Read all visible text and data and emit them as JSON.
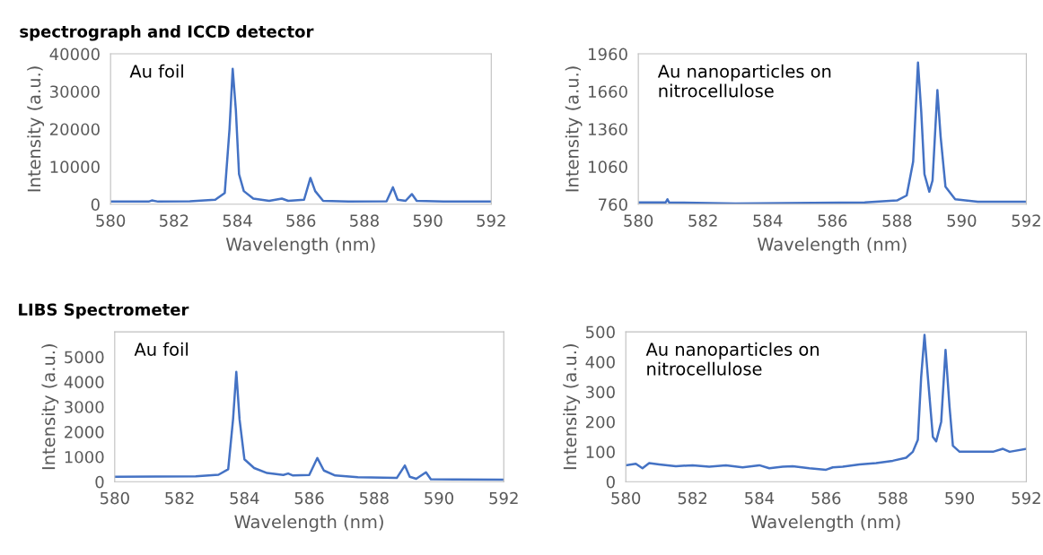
{
  "chart_data": [
    {
      "type": "line",
      "title": "spectrograph and ICCD detector",
      "xlabel": "Wavelength (nm)",
      "ylabel": "Intensity (a.u.)",
      "annotations": [
        "Au foil"
      ],
      "xlim": [
        580,
        592
      ],
      "xticks": [
        580,
        582,
        584,
        586,
        588,
        590,
        592
      ],
      "ylim": [
        0,
        40000
      ],
      "yticks": [
        0,
        10000,
        20000,
        30000,
        40000
      ],
      "grid": false,
      "legend": false,
      "series": [
        {
          "color": "#4472c4",
          "x": [
            580,
            581.2,
            581.3,
            581.5,
            582.5,
            583.3,
            583.6,
            583.75,
            583.85,
            583.95,
            584.05,
            584.2,
            584.5,
            585,
            585.4,
            585.6,
            586.1,
            586.3,
            586.45,
            586.7,
            587.5,
            588.7,
            588.9,
            589.05,
            589.3,
            589.5,
            589.65,
            590.5,
            592
          ],
          "values": [
            700,
            700,
            1000,
            700,
            800,
            1200,
            3000,
            20000,
            36000,
            25000,
            8000,
            3500,
            1500,
            900,
            1500,
            900,
            1200,
            7000,
            3500,
            900,
            700,
            800,
            4500,
            1200,
            900,
            2700,
            900,
            700,
            700
          ]
        }
      ]
    },
    {
      "type": "line",
      "xlabel": "Wavelength (nm)",
      "ylabel": "Intensity (a.u.)",
      "annotations": [
        "Au nanoparticles on\nnitrocellulose"
      ],
      "xlim": [
        580,
        592
      ],
      "xticks": [
        580,
        582,
        584,
        586,
        588,
        590,
        592
      ],
      "ylim": [
        760,
        1960
      ],
      "yticks": [
        760,
        1060,
        1360,
        1660,
        1960
      ],
      "grid": false,
      "legend": false,
      "series": [
        {
          "color": "#4472c4",
          "x": [
            580,
            580.85,
            580.9,
            580.95,
            583,
            587,
            588,
            588.3,
            588.5,
            588.65,
            588.75,
            588.85,
            589.0,
            589.1,
            589.25,
            589.35,
            589.5,
            589.8,
            590.5,
            592
          ],
          "values": [
            775,
            775,
            800,
            775,
            765,
            775,
            790,
            830,
            1100,
            1890,
            1500,
            1000,
            860,
            950,
            1670,
            1300,
            900,
            800,
            780,
            780
          ]
        }
      ]
    },
    {
      "type": "line",
      "title": "LIBS Spectrometer",
      "xlabel": "Wavelength (nm)",
      "ylabel": "Intensity (a.u.)",
      "annotations": [
        "Au foil"
      ],
      "xlim": [
        580,
        592
      ],
      "xticks": [
        580,
        582,
        584,
        586,
        588,
        590,
        592
      ],
      "ylim": [
        0,
        6000
      ],
      "yticks": [
        0,
        1000,
        2000,
        3000,
        4000,
        5000
      ],
      "grid": false,
      "legend": false,
      "series": [
        {
          "color": "#4472c4",
          "x": [
            580,
            582.5,
            583.2,
            583.5,
            583.65,
            583.75,
            583.85,
            584,
            584.3,
            584.7,
            585.2,
            585.35,
            585.5,
            586,
            586.25,
            586.45,
            586.8,
            587.5,
            588.7,
            588.95,
            589.1,
            589.3,
            589.6,
            589.75,
            590.5,
            592
          ],
          "values": [
            200,
            220,
            280,
            500,
            2500,
            4400,
            2500,
            900,
            550,
            350,
            270,
            330,
            250,
            270,
            950,
            450,
            250,
            180,
            150,
            650,
            200,
            120,
            380,
            100,
            90,
            80
          ]
        }
      ]
    },
    {
      "type": "line",
      "xlabel": "Wavelength (nm)",
      "ylabel": "Intensity (a.u.)",
      "annotations": [
        "Au nanoparticles on\nnitrocellulose"
      ],
      "xlim": [
        580,
        592
      ],
      "xticks": [
        580,
        582,
        584,
        586,
        588,
        590,
        592
      ],
      "ylim": [
        0,
        500
      ],
      "yticks": [
        0,
        100,
        200,
        300,
        400,
        500
      ],
      "grid": false,
      "legend": false,
      "series": [
        {
          "color": "#4472c4",
          "x": [
            580,
            580.3,
            580.5,
            580.7,
            581,
            581.5,
            582,
            582.5,
            583,
            583.5,
            584,
            584.3,
            584.7,
            585,
            585.5,
            586,
            586.2,
            586.5,
            587,
            587.5,
            588,
            588.4,
            588.6,
            588.75,
            588.85,
            588.95,
            589.05,
            589.2,
            589.3,
            589.45,
            589.58,
            589.7,
            589.8,
            590,
            590.5,
            591,
            591.3,
            591.5,
            592
          ],
          "values": [
            55,
            60,
            45,
            62,
            58,
            52,
            55,
            50,
            55,
            48,
            55,
            45,
            50,
            52,
            45,
            40,
            48,
            50,
            58,
            62,
            70,
            80,
            100,
            140,
            350,
            490,
            350,
            150,
            135,
            200,
            440,
            250,
            120,
            100,
            100,
            100,
            110,
            100,
            110
          ]
        }
      ]
    }
  ]
}
